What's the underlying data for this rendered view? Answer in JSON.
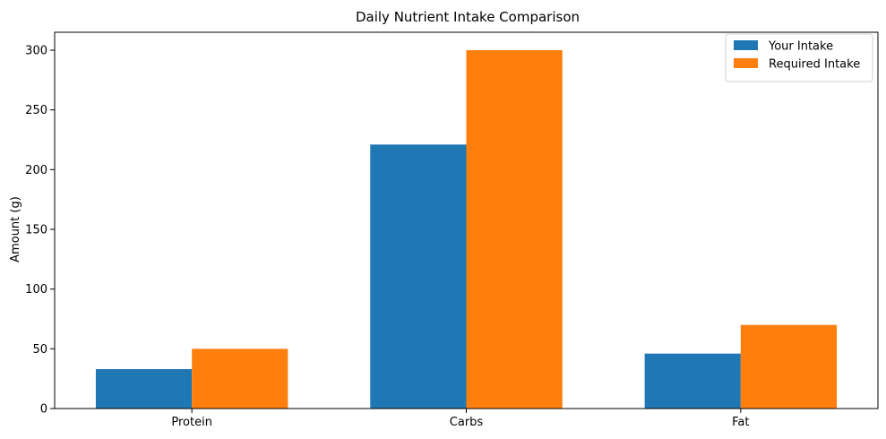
{
  "chart_data": {
    "type": "bar",
    "title": "Daily Nutrient Intake Comparison",
    "xlabel": "",
    "ylabel": "Amount (g)",
    "categories": [
      "Protein",
      "Carbs",
      "Fat"
    ],
    "series": [
      {
        "name": "Your Intake",
        "color": "#1f77b4",
        "values": [
          33,
          221,
          46
        ]
      },
      {
        "name": "Required Intake",
        "color": "#ff7f0e",
        "values": [
          50,
          300,
          70
        ]
      }
    ],
    "ylim": [
      0,
      315
    ],
    "yticks": [
      0,
      50,
      100,
      150,
      200,
      250,
      300
    ],
    "grid": false,
    "legend_position": "top-right"
  }
}
